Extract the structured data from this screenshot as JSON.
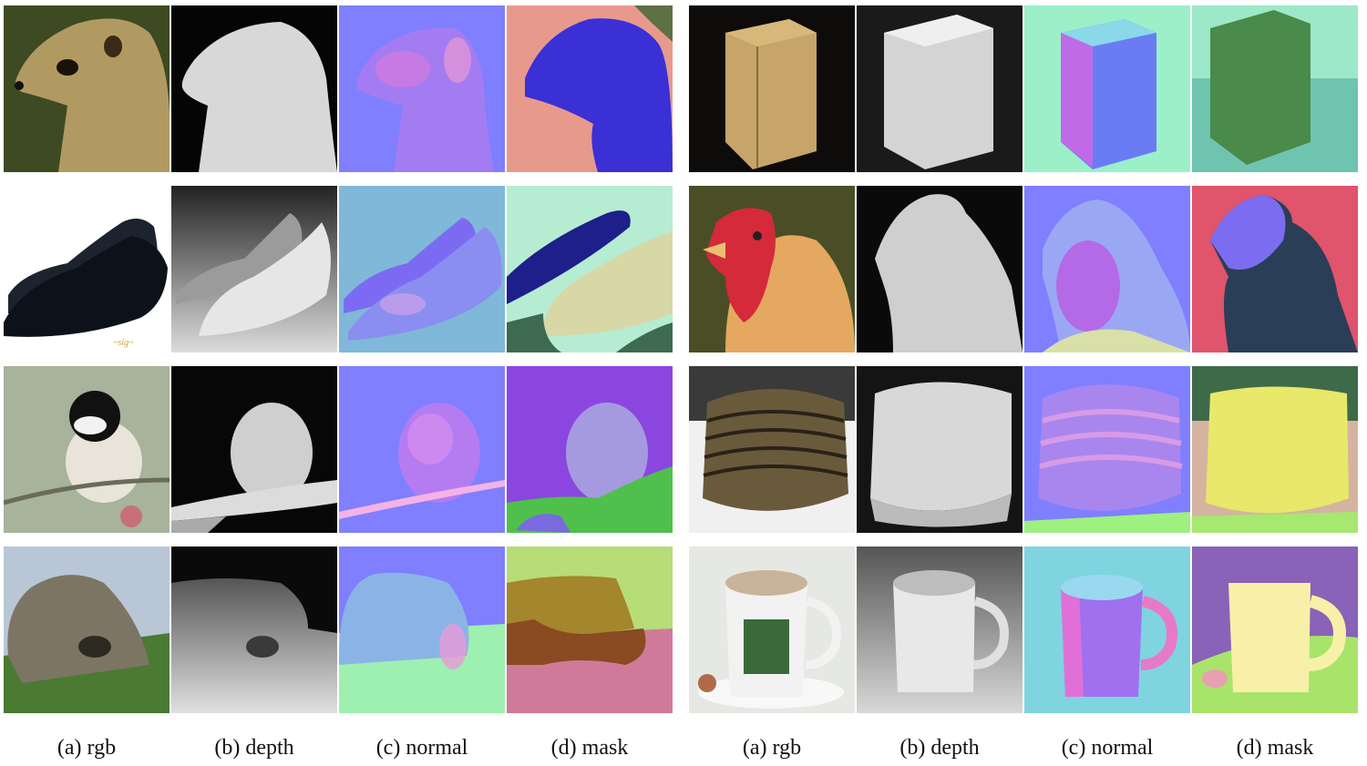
{
  "panels": [
    {
      "rows": [
        {
          "rgb": "meerkat-photo",
          "depth": "meerkat-depth",
          "normal": "meerkat-normal",
          "mask": "meerkat-mask"
        },
        {
          "rgb": "shoes-photo",
          "depth": "shoes-depth",
          "normal": "shoes-normal",
          "mask": "shoes-mask"
        },
        {
          "rgb": "chickadee-photo",
          "depth": "chickadee-depth",
          "normal": "chickadee-normal",
          "mask": "chickadee-mask"
        },
        {
          "rgb": "rock-photo",
          "depth": "rock-depth",
          "normal": "rock-normal",
          "mask": "rock-mask"
        }
      ],
      "captions": [
        "(a) rgb",
        "(b) depth",
        "(c) normal",
        "(d) mask"
      ]
    },
    {
      "rows": [
        {
          "rgb": "hamper-photo",
          "depth": "hamper-depth",
          "normal": "hamper-normal",
          "mask": "hamper-mask"
        },
        {
          "rgb": "rooster-photo",
          "depth": "rooster-depth",
          "normal": "rooster-normal",
          "mask": "rooster-mask"
        },
        {
          "rgb": "armor-photo",
          "depth": "armor-depth",
          "normal": "armor-normal",
          "mask": "armor-mask"
        },
        {
          "rgb": "mug-photo",
          "depth": "mug-depth",
          "normal": "mug-normal",
          "mask": "mug-mask"
        }
      ],
      "captions": [
        "(a) rgb",
        "(b) depth",
        "(c) normal",
        "(d) mask"
      ]
    }
  ],
  "colors": {
    "normal_background": "#7f7fff",
    "mask_purple": "#3b2fd6",
    "mask_pink": "#e79a8c",
    "mask_green": "#6d9a52"
  }
}
